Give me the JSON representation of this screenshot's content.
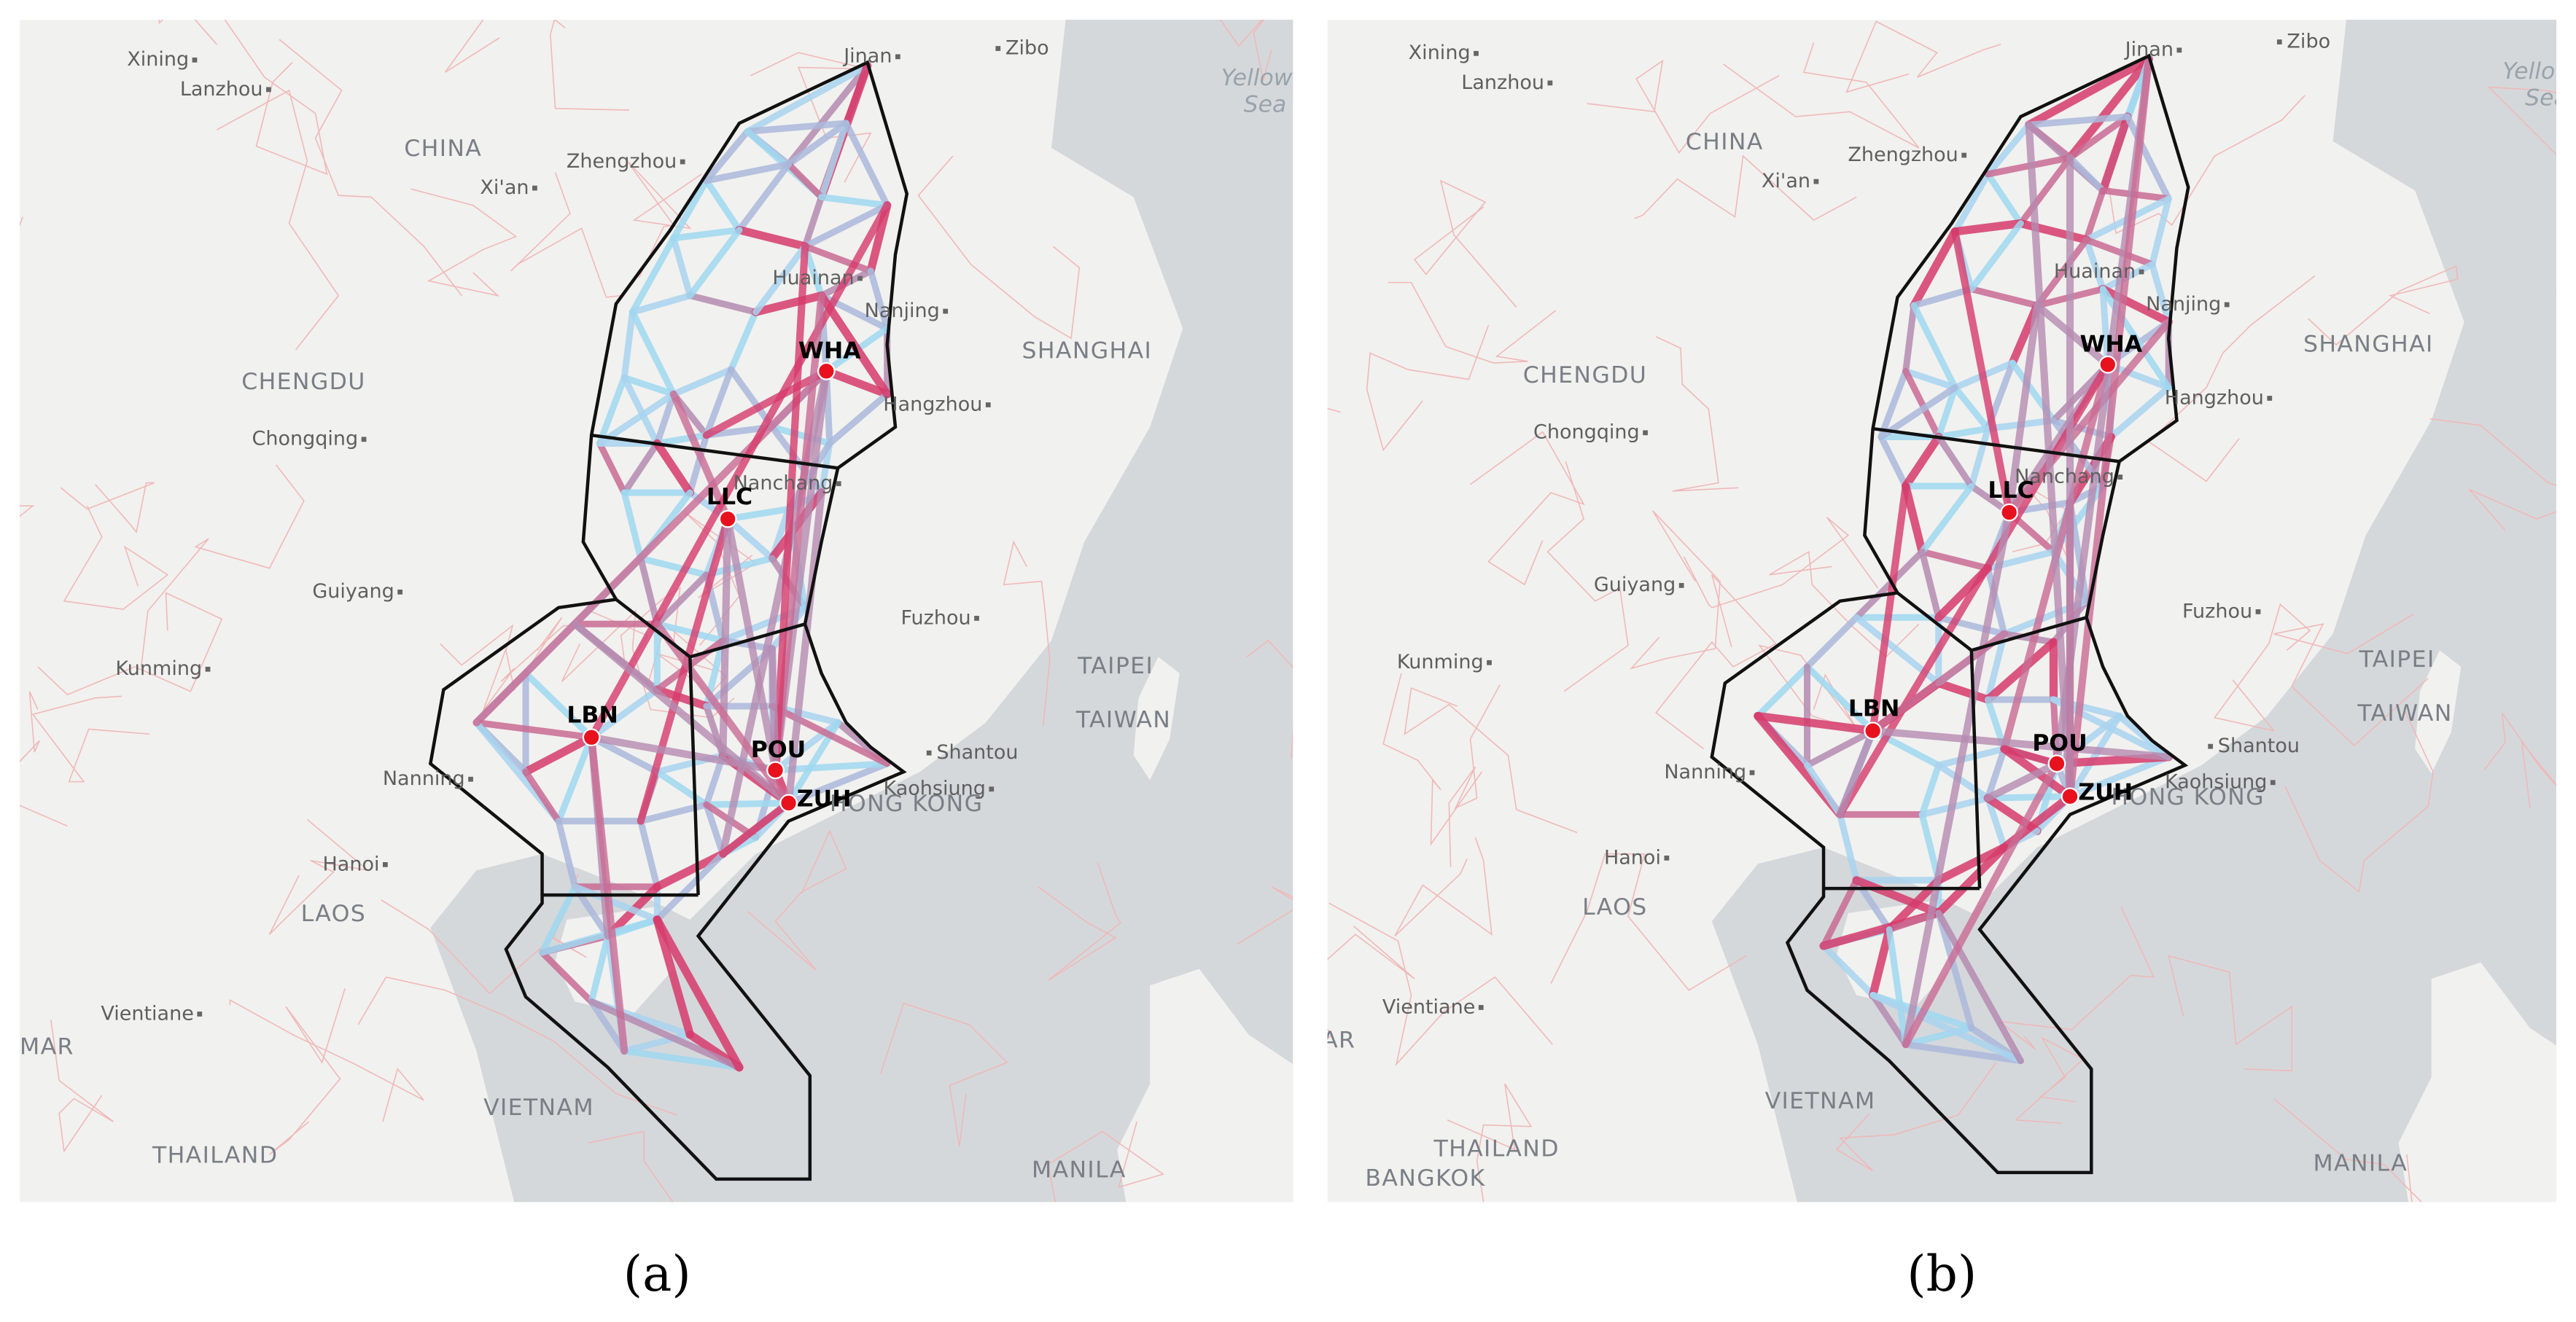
{
  "panels": [
    {
      "caption": "(a)",
      "places": [
        "Xining",
        "Lanzhou",
        "CHINA",
        "Jinan",
        "Zibo",
        "Yellow",
        "Sea",
        "Zhengzhou",
        "Xi'an",
        "Huainan",
        "Nanjing",
        "SHANGHAI",
        "CHENGDU",
        "Hangzhou",
        "Chongqing",
        "Nanchang",
        "Guiyang",
        "Fuzhou",
        "Kunming",
        "TAIPEI",
        "TAIWAN",
        "Nanning",
        "Shantou",
        "HONG KONG",
        "Kaohsiung",
        "Hanoi",
        "LAOS",
        "Vientiane",
        "MAR",
        "VIETNAM",
        "THAILAND",
        "MANILA"
      ],
      "airports": [
        "WHA",
        "LLC",
        "LBN",
        "POU",
        "ZUH"
      ]
    },
    {
      "caption": "(b)",
      "places": [
        "Xining",
        "Lanzhou",
        "CHINA",
        "Jinan",
        "Zibo",
        "Yellow",
        "Sea",
        "Zhengzhou",
        "Xi'an",
        "Huainan",
        "Nanjing",
        "SHANGHAI",
        "CHENGDU",
        "Hangzhou",
        "Chongqing",
        "Nanchang",
        "Guiyang",
        "Fuzhou",
        "Kunming",
        "TAIPEI",
        "TAIWAN",
        "Nanning",
        "Shantou",
        "HONG KONG",
        "Kaohsiung",
        "Hanoi",
        "LAOS",
        "Vientiane",
        "MAR",
        "VIETNAM",
        "THAILAND",
        "MANILA",
        "BANGKOK"
      ],
      "airports": [
        "WHA",
        "LLC",
        "LBN",
        "POU",
        "ZUH"
      ]
    }
  ]
}
